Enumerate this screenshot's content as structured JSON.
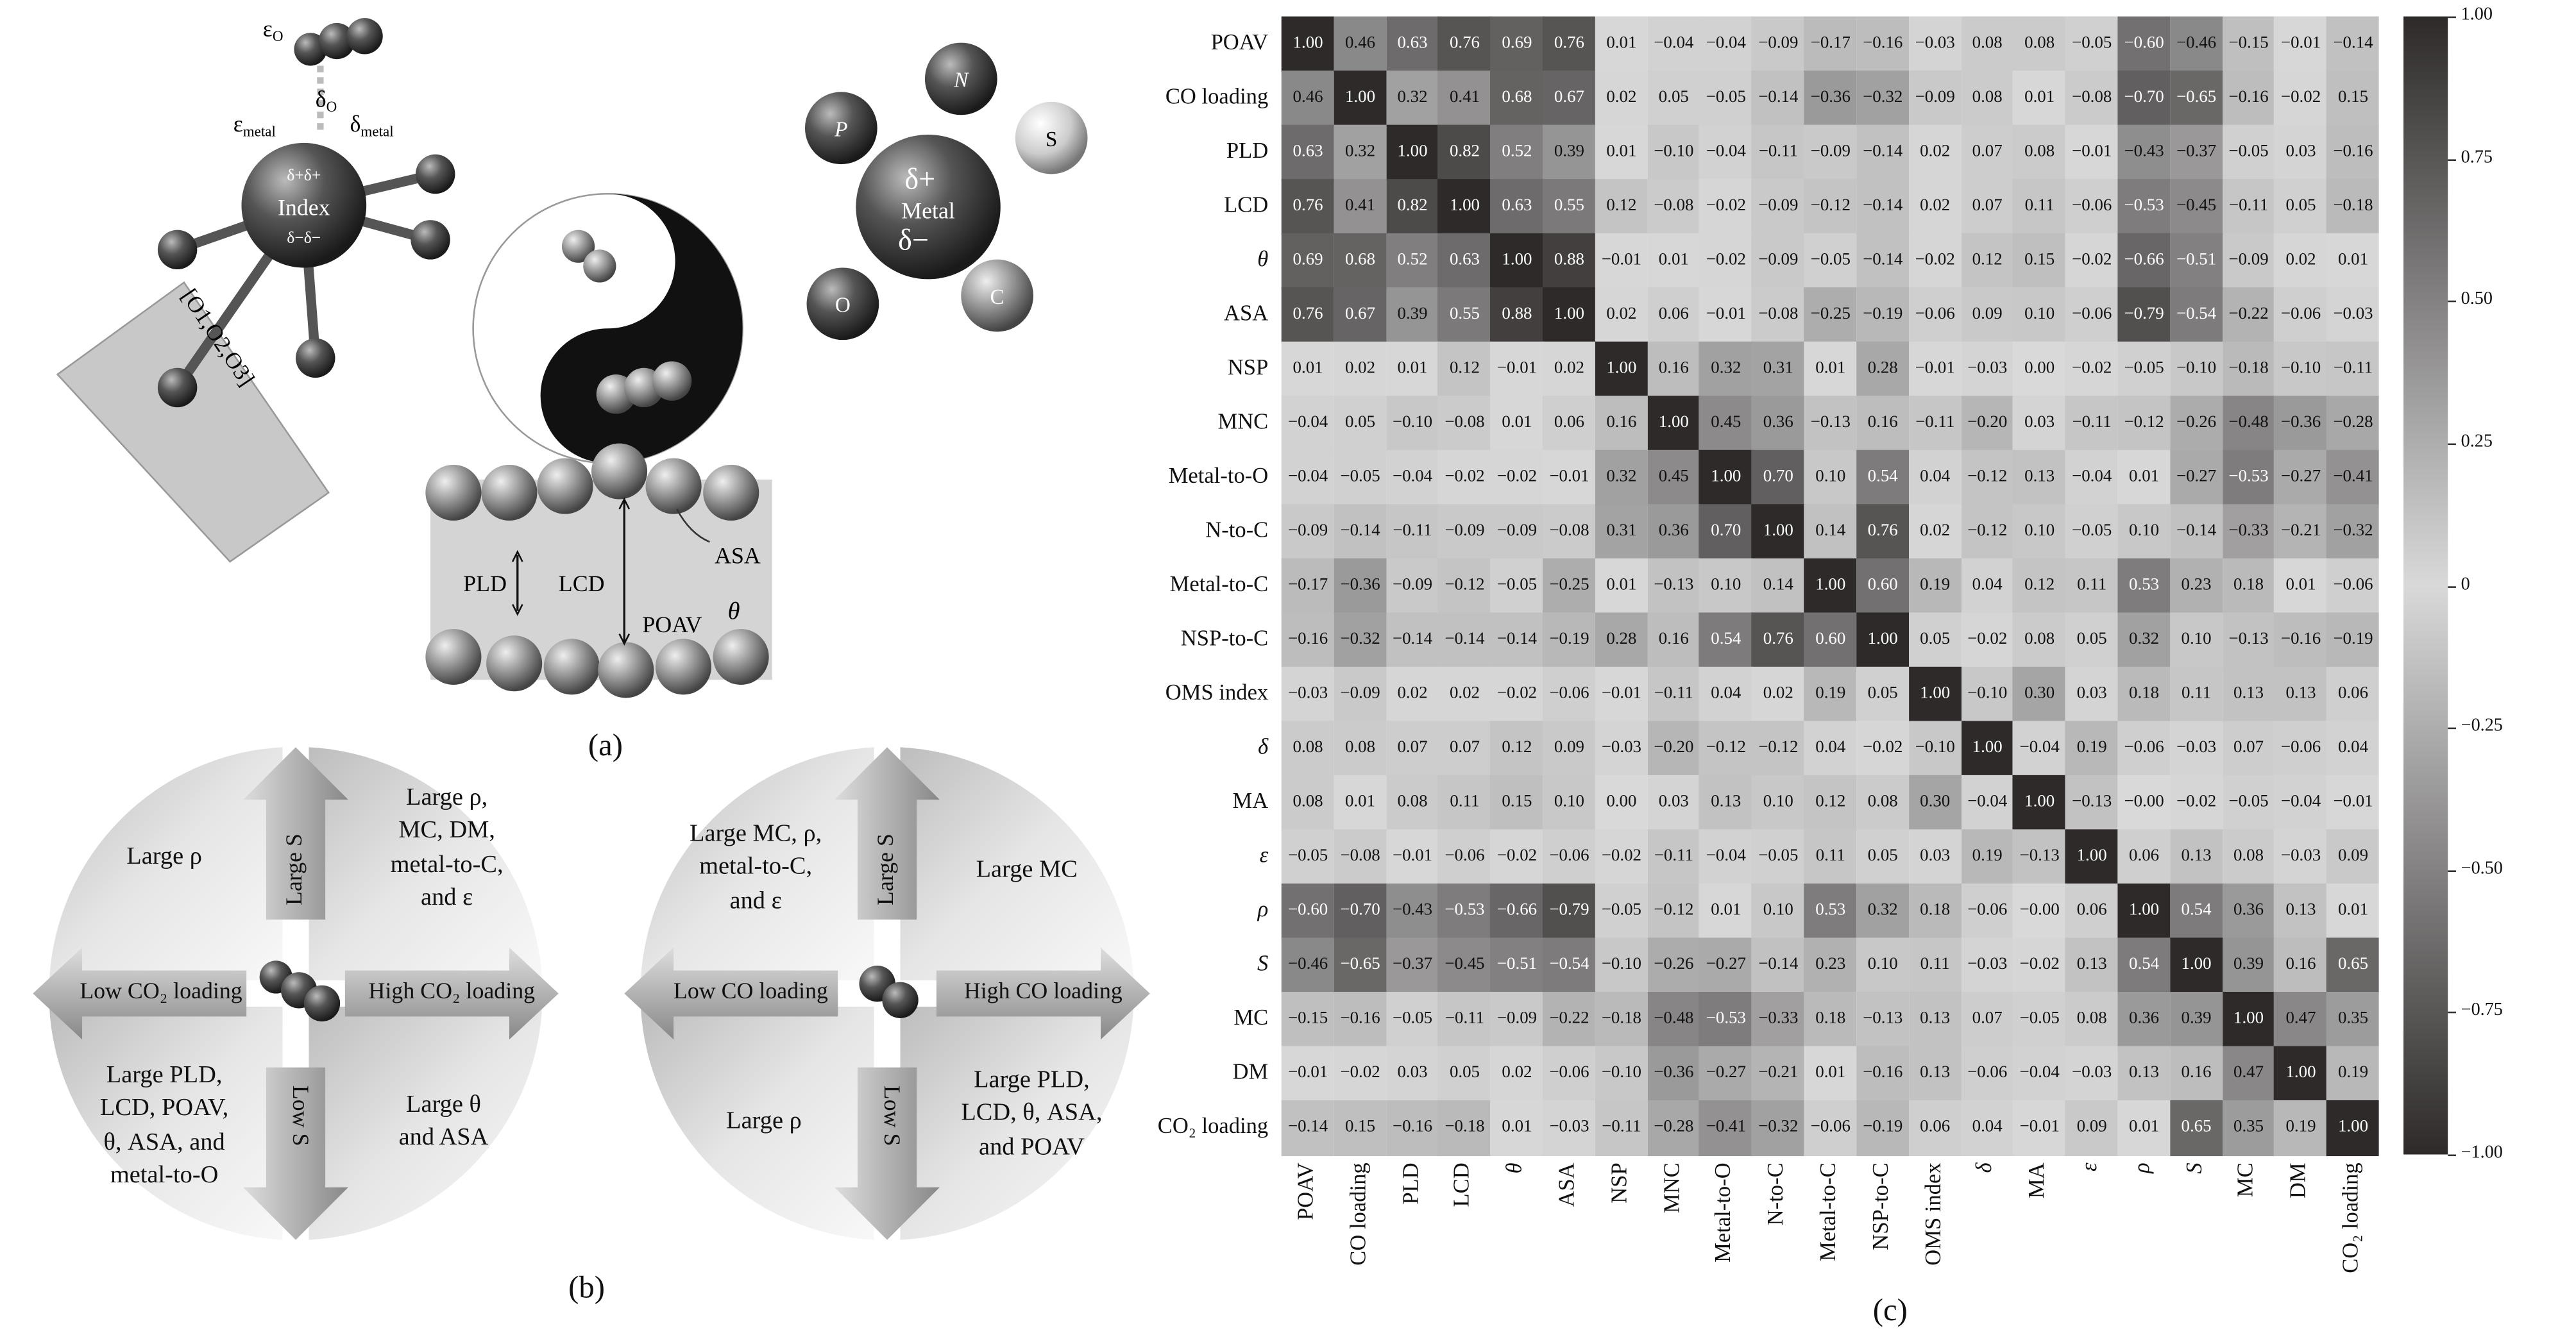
{
  "panel_a": {
    "label": "(a)",
    "eps_o": "ε",
    "eps_o_sub": "O",
    "delta_o": "δ",
    "delta_o_sub": "O",
    "eps_metal": "ε",
    "eps_metal_sub": "metal",
    "delta_metal": "δ",
    "delta_metal_sub": "metal",
    "index": "Index",
    "delta_plus": "δ+δ+",
    "delta_minus": "δ−δ−",
    "oxygens": "[O1,O2,O3]",
    "atoms": [
      "P",
      "N",
      "S",
      "O",
      "C"
    ],
    "metal": "Metal",
    "metal_dplus": "δ+",
    "metal_dminus": "δ−",
    "pore": {
      "pld": "PLD",
      "lcd": "LCD",
      "poav": "POAV",
      "theta": "θ",
      "asa": "ASA"
    }
  },
  "panel_b": {
    "label": "(b)",
    "co2": {
      "top_left": [
        "Large ρ"
      ],
      "up_arrow": "Large S",
      "top_right": [
        "Large ρ,",
        "MC, DM,",
        "metal-to-C,",
        "and ε"
      ],
      "left_arrow": "Low CO₂ loading",
      "right_arrow": "High CO₂ loading",
      "bottom_left": [
        "Large PLD,",
        "LCD, POAV,",
        "θ, ASA, and",
        "metal-to-O"
      ],
      "down_arrow": "Low S",
      "bottom_right": [
        "Large θ",
        "and ASA"
      ]
    },
    "co": {
      "top_left": [
        "Large MC, ρ,",
        "metal-to-C,",
        "and ε"
      ],
      "up_arrow": "Large S",
      "top_right": [
        "Large MC"
      ],
      "left_arrow": "Low CO loading",
      "right_arrow": "High CO loading",
      "bottom_left": [
        "Large ρ"
      ],
      "down_arrow": "Low S",
      "bottom_right": [
        "Large PLD,",
        "LCD, θ, ASA,",
        "and POAV"
      ]
    }
  },
  "panel_c": {
    "label": "(c)"
  },
  "chart_data": {
    "type": "heatmap",
    "title": "",
    "labels": [
      "POAV",
      "CO loading",
      "PLD",
      "LCD",
      "θ",
      "ASA",
      "NSP",
      "MNC",
      "Metal-to-O",
      "N-to-C",
      "Metal-to-C",
      "NSP-to-C",
      "OMS index",
      "δ",
      "MA",
      "ε",
      "ρ",
      "S",
      "MC",
      "DM",
      "CO₂ loading"
    ],
    "values": [
      [
        1.0,
        0.46,
        0.63,
        0.76,
        0.69,
        0.76,
        0.01,
        -0.04,
        -0.04,
        -0.09,
        -0.17,
        -0.16,
        -0.03,
        0.08,
        0.08,
        -0.05,
        -0.6,
        -0.46,
        -0.15,
        -0.01,
        -0.14
      ],
      [
        0.46,
        1.0,
        0.32,
        0.41,
        0.68,
        0.67,
        0.02,
        0.05,
        -0.05,
        -0.14,
        -0.36,
        -0.32,
        -0.09,
        0.08,
        0.01,
        -0.08,
        -0.7,
        -0.65,
        -0.16,
        -0.02,
        0.15
      ],
      [
        0.63,
        0.32,
        1.0,
        0.82,
        0.52,
        0.39,
        0.01,
        -0.1,
        -0.04,
        -0.11,
        -0.09,
        -0.14,
        0.02,
        0.07,
        0.08,
        -0.01,
        -0.43,
        -0.37,
        -0.05,
        0.03,
        -0.16
      ],
      [
        0.76,
        0.41,
        0.82,
        1.0,
        0.63,
        0.55,
        0.12,
        -0.08,
        -0.02,
        -0.09,
        -0.12,
        -0.14,
        0.02,
        0.07,
        0.11,
        -0.06,
        -0.53,
        -0.45,
        -0.11,
        0.05,
        -0.18
      ],
      [
        0.69,
        0.68,
        0.52,
        0.63,
        1.0,
        0.88,
        -0.01,
        0.01,
        -0.02,
        -0.09,
        -0.05,
        -0.14,
        -0.02,
        0.12,
        0.15,
        -0.02,
        -0.66,
        -0.51,
        -0.09,
        0.02,
        0.01
      ],
      [
        0.76,
        0.67,
        0.39,
        0.55,
        0.88,
        1.0,
        0.02,
        0.06,
        -0.01,
        -0.08,
        -0.25,
        -0.19,
        -0.06,
        0.09,
        0.1,
        -0.06,
        -0.79,
        -0.54,
        -0.22,
        -0.06,
        -0.03
      ],
      [
        0.01,
        0.02,
        0.01,
        0.12,
        -0.01,
        0.02,
        1.0,
        0.16,
        0.32,
        0.31,
        0.01,
        0.28,
        -0.01,
        -0.03,
        0.0,
        -0.02,
        -0.05,
        -0.1,
        -0.18,
        -0.1,
        -0.11
      ],
      [
        -0.04,
        0.05,
        -0.1,
        -0.08,
        0.01,
        0.06,
        0.16,
        1.0,
        0.45,
        0.36,
        -0.13,
        0.16,
        -0.11,
        -0.2,
        0.03,
        -0.11,
        -0.12,
        -0.26,
        -0.48,
        -0.36,
        -0.28
      ],
      [
        -0.04,
        -0.05,
        -0.04,
        -0.02,
        -0.02,
        -0.01,
        0.32,
        0.45,
        1.0,
        0.7,
        0.1,
        0.54,
        0.04,
        -0.12,
        0.13,
        -0.04,
        0.01,
        -0.27,
        -0.53,
        -0.27,
        -0.41
      ],
      [
        -0.09,
        -0.14,
        -0.11,
        -0.09,
        -0.09,
        -0.08,
        0.31,
        0.36,
        0.7,
        1.0,
        0.14,
        0.76,
        0.02,
        -0.12,
        0.1,
        -0.05,
        0.1,
        -0.14,
        -0.33,
        -0.21,
        -0.32
      ],
      [
        -0.17,
        -0.36,
        -0.09,
        -0.12,
        -0.05,
        -0.25,
        0.01,
        -0.13,
        0.1,
        0.14,
        1.0,
        0.6,
        0.19,
        0.04,
        0.12,
        0.11,
        0.53,
        0.23,
        0.18,
        0.01,
        -0.06
      ],
      [
        -0.16,
        -0.32,
        -0.14,
        -0.14,
        -0.14,
        -0.19,
        0.28,
        0.16,
        0.54,
        0.76,
        0.6,
        1.0,
        0.05,
        -0.02,
        0.08,
        0.05,
        0.32,
        0.1,
        -0.13,
        -0.16,
        -0.19
      ],
      [
        -0.03,
        -0.09,
        0.02,
        0.02,
        -0.02,
        -0.06,
        -0.01,
        -0.11,
        0.04,
        0.02,
        0.19,
        0.05,
        1.0,
        -0.1,
        0.3,
        0.03,
        0.18,
        0.11,
        0.13,
        0.13,
        0.06
      ],
      [
        0.08,
        0.08,
        0.07,
        0.07,
        0.12,
        0.09,
        -0.03,
        -0.2,
        -0.12,
        -0.12,
        0.04,
        -0.02,
        -0.1,
        1.0,
        -0.04,
        0.19,
        -0.06,
        -0.03,
        0.07,
        -0.06,
        0.04
      ],
      [
        0.08,
        0.01,
        0.08,
        0.11,
        0.15,
        0.1,
        0.0,
        0.03,
        0.13,
        0.1,
        0.12,
        0.08,
        0.3,
        -0.04,
        1.0,
        -0.13,
        -0.0,
        -0.02,
        -0.05,
        -0.04,
        -0.01
      ],
      [
        -0.05,
        -0.08,
        -0.01,
        -0.06,
        -0.02,
        -0.06,
        -0.02,
        -0.11,
        -0.04,
        -0.05,
        0.11,
        0.05,
        0.03,
        0.19,
        -0.13,
        1.0,
        0.06,
        0.13,
        0.08,
        -0.03,
        0.09
      ],
      [
        -0.6,
        -0.7,
        -0.43,
        -0.53,
        -0.66,
        -0.79,
        -0.05,
        -0.12,
        0.01,
        0.1,
        0.53,
        0.32,
        0.18,
        -0.06,
        -0.0,
        0.06,
        1.0,
        0.54,
        0.36,
        0.13,
        0.01
      ],
      [
        -0.46,
        -0.65,
        -0.37,
        -0.45,
        -0.51,
        -0.54,
        -0.1,
        -0.26,
        -0.27,
        -0.14,
        0.23,
        0.1,
        0.11,
        -0.03,
        -0.02,
        0.13,
        0.54,
        1.0,
        0.39,
        0.16,
        0.65
      ],
      [
        -0.15,
        -0.16,
        -0.05,
        -0.11,
        -0.09,
        -0.22,
        -0.18,
        -0.48,
        -0.53,
        -0.33,
        0.18,
        -0.13,
        0.13,
        0.07,
        -0.05,
        0.08,
        0.36,
        0.39,
        1.0,
        0.47,
        0.35
      ],
      [
        -0.01,
        -0.02,
        0.03,
        0.05,
        0.02,
        -0.06,
        -0.1,
        -0.36,
        -0.27,
        -0.21,
        0.01,
        -0.16,
        0.13,
        -0.06,
        -0.04,
        -0.03,
        0.13,
        0.16,
        0.47,
        1.0,
        0.19
      ],
      [
        -0.14,
        0.15,
        -0.16,
        -0.18,
        0.01,
        -0.03,
        -0.11,
        -0.28,
        -0.41,
        -0.32,
        -0.06,
        -0.19,
        0.06,
        0.04,
        -0.01,
        0.09,
        0.01,
        0.65,
        0.35,
        0.19,
        1.0
      ]
    ],
    "value_range": [
      -1.0,
      1.0
    ],
    "colorbar_ticks": [
      "1.00",
      "0.75",
      "0.50",
      "0.25",
      "0",
      "−0.25",
      "−0.50",
      "−0.75",
      "−1.00"
    ],
    "colormap": {
      "extreme": "#2e2a2a",
      "center": "#d9d9d9"
    }
  }
}
